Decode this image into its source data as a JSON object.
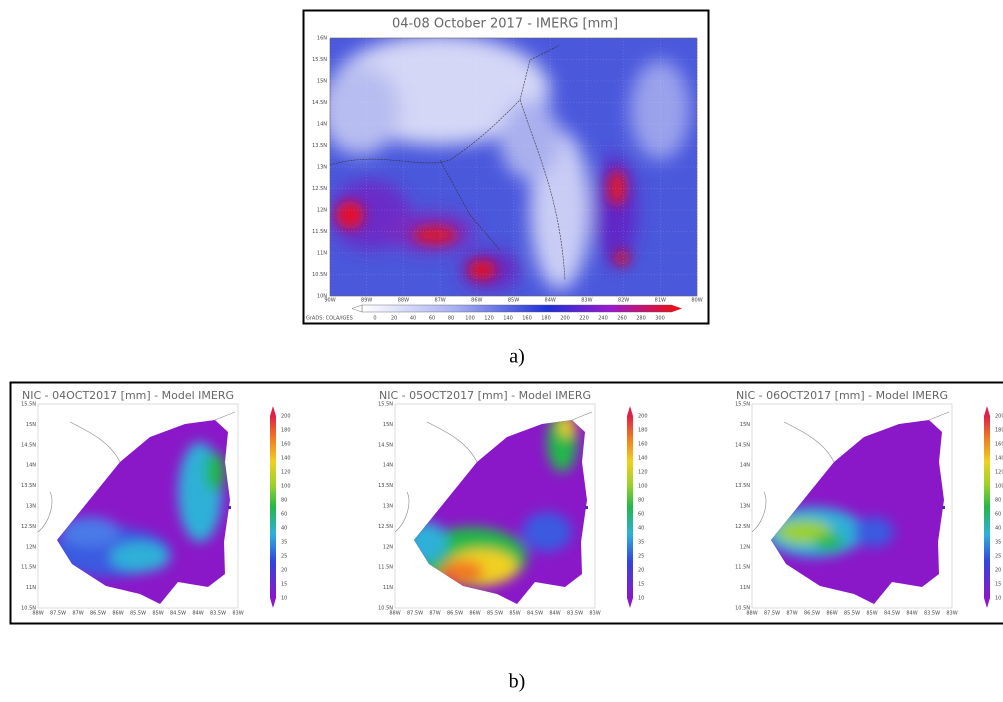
{
  "panel_a": {
    "title": "04-08 October 2017 - IMERG [mm]",
    "lat_labels": [
      "16N",
      "15.5N",
      "15N",
      "14.5N",
      "14N",
      "13.5N",
      "13N",
      "12.5N",
      "12N",
      "11.5N",
      "11N",
      "10.5N",
      "10N"
    ],
    "lon_labels": [
      "90W",
      "89W",
      "88W",
      "87W",
      "86W",
      "85W",
      "84W",
      "83W",
      "82W",
      "81W",
      "80W"
    ],
    "colorbar_labels": [
      0,
      20,
      40,
      60,
      80,
      100,
      120,
      140,
      160,
      180,
      200,
      220,
      240,
      260,
      280,
      300
    ],
    "credit": "GrADS: COLA/IGES",
    "caption": "a)"
  },
  "panel_b": {
    "maps": [
      {
        "title": "NIC - 04OCT2017 [mm] - Model IMERG"
      },
      {
        "title": "NIC - 05OCT2017 [mm] - Model IMERG"
      },
      {
        "title": "NIC - 06OCT2017 [mm] - Model IMERG"
      }
    ],
    "lat_labels": [
      "15.5N",
      "15N",
      "14.5N",
      "14N",
      "13.5N",
      "13N",
      "12.5N",
      "12N",
      "11.5N",
      "11N",
      "10.5N"
    ],
    "lon_labels": [
      "88W",
      "87.5W",
      "87W",
      "86.5W",
      "86W",
      "85.5W",
      "85W",
      "84.5W",
      "84W",
      "83.5W",
      "83W"
    ],
    "colorbar_labels": [
      10,
      15,
      20,
      25,
      35,
      40,
      60,
      80,
      100,
      120,
      140,
      160,
      180,
      200
    ],
    "caption": "b)"
  }
}
